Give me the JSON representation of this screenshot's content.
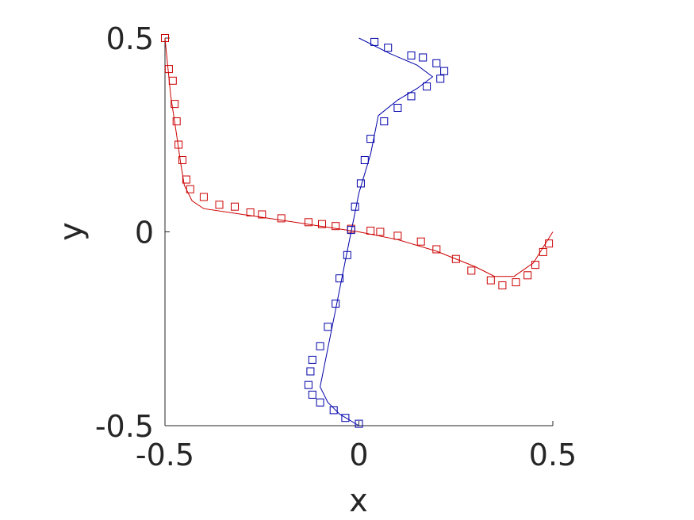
{
  "chart_data": {
    "type": "line",
    "xlabel": "x",
    "ylabel": "y",
    "xlim": [
      -0.5,
      0.5
    ],
    "ylim": [
      -0.5,
      0.5
    ],
    "x_ticks": [
      "-0.5",
      "0",
      "0.5"
    ],
    "y_ticks": [
      "-0.5",
      "0",
      "0.5"
    ],
    "grid": false,
    "series": [
      {
        "color": "#cc0000",
        "line": {
          "x": [
            -0.5,
            -0.485,
            -0.47,
            -0.46,
            -0.45,
            -0.43,
            -0.4,
            -0.3,
            -0.2,
            -0.1,
            0.0,
            0.1,
            0.2,
            0.3,
            0.35,
            0.4,
            0.45,
            0.5
          ],
          "y": [
            0.5,
            0.35,
            0.25,
            0.18,
            0.12,
            0.08,
            0.06,
            0.045,
            0.03,
            0.015,
            0.0,
            -0.02,
            -0.05,
            -0.09,
            -0.115,
            -0.115,
            -0.08,
            0.0
          ]
        },
        "points": {
          "x": [
            -0.5,
            -0.49,
            -0.48,
            -0.475,
            -0.47,
            -0.465,
            -0.455,
            -0.445,
            -0.435,
            -0.4,
            -0.36,
            -0.32,
            -0.28,
            -0.25,
            -0.2,
            -0.13,
            -0.095,
            -0.06,
            -0.02,
            0.03,
            0.055,
            0.1,
            0.16,
            0.2,
            0.25,
            0.29,
            0.34,
            0.37,
            0.405,
            0.435,
            0.455,
            0.475,
            0.49
          ],
          "y": [
            0.5,
            0.42,
            0.39,
            0.33,
            0.285,
            0.225,
            0.185,
            0.135,
            0.11,
            0.09,
            0.07,
            0.065,
            0.05,
            0.045,
            0.035,
            0.025,
            0.02,
            0.015,
            0.008,
            0.003,
            0.0,
            -0.01,
            -0.025,
            -0.045,
            -0.07,
            -0.1,
            -0.125,
            -0.138,
            -0.13,
            -0.112,
            -0.085,
            -0.052,
            -0.03
          ]
        }
      },
      {
        "color": "#0000aa",
        "line": {
          "x": [
            0.0,
            0.08,
            0.15,
            0.19,
            0.15,
            0.1,
            0.05,
            0.03,
            0.0,
            -0.02,
            -0.04,
            -0.06,
            -0.08,
            -0.1,
            -0.08,
            -0.05,
            0.0
          ],
          "y": [
            0.5,
            0.46,
            0.43,
            0.4,
            0.37,
            0.34,
            0.3,
            0.2,
            0.1,
            0.0,
            -0.1,
            -0.2,
            -0.3,
            -0.4,
            -0.44,
            -0.47,
            -0.5
          ]
        },
        "points": {
          "x": [
            0.04,
            0.075,
            0.135,
            0.165,
            0.2,
            0.22,
            0.21,
            0.175,
            0.135,
            0.1,
            0.065,
            0.03,
            0.015,
            0.005,
            -0.01,
            -0.02,
            -0.03,
            -0.05,
            -0.06,
            -0.08,
            -0.1,
            -0.12,
            -0.125,
            -0.13,
            -0.12,
            -0.1,
            -0.065,
            -0.035,
            0.0
          ],
          "y": [
            0.49,
            0.475,
            0.455,
            0.45,
            0.435,
            0.415,
            0.395,
            0.375,
            0.35,
            0.32,
            0.285,
            0.24,
            0.185,
            0.125,
            0.065,
            0.005,
            -0.06,
            -0.12,
            -0.185,
            -0.245,
            -0.295,
            -0.33,
            -0.36,
            -0.395,
            -0.42,
            -0.44,
            -0.46,
            -0.48,
            -0.495
          ]
        }
      }
    ]
  }
}
